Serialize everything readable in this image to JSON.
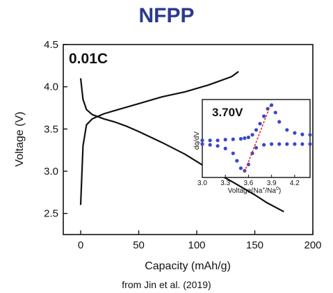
{
  "title": "NFPP",
  "caption": "from Jin et al. (2019)",
  "rate_label": "0.01C",
  "colors": {
    "title": "#2b3990",
    "curve": "#111111",
    "inset_points": "#3a47c8",
    "fit_line": "#e0302a"
  },
  "chart_data": {
    "type": "line",
    "xlabel": "Capacity (mAh/g)",
    "ylabel": "Voltage (V)",
    "xlim": [
      -15,
      200
    ],
    "ylim": [
      2.25,
      4.5
    ],
    "xticks": [
      0,
      50,
      100,
      150,
      200
    ],
    "yticks": [
      2.5,
      3.0,
      3.5,
      4.0,
      4.5
    ],
    "ytick_labels": [
      "2.5",
      "3.0",
      "3.5",
      "4.0",
      "4.5"
    ],
    "grid": false,
    "series": [
      {
        "x": [
          0,
          2,
          5,
          10,
          20,
          30,
          50,
          70,
          90,
          110,
          120,
          130,
          136
        ],
        "y": [
          2.6,
          3.3,
          3.55,
          3.62,
          3.68,
          3.72,
          3.8,
          3.88,
          3.94,
          4.02,
          4.07,
          4.12,
          4.18
        ]
      },
      {
        "x": [
          0,
          2,
          5,
          10,
          20,
          30,
          40,
          50,
          70,
          90,
          110,
          130,
          150,
          160,
          175
        ],
        "y": [
          4.1,
          3.85,
          3.73,
          3.67,
          3.62,
          3.58,
          3.53,
          3.47,
          3.34,
          3.2,
          3.03,
          2.88,
          2.72,
          2.63,
          2.52
        ]
      }
    ],
    "inset": {
      "peak_label": "3.70V",
      "xlabel": "Voltage(Na+/Na0)",
      "ylabel": "dq/dV",
      "xlim": [
        3.0,
        4.4
      ],
      "xticks": [
        3.0,
        3.3,
        3.6,
        3.9,
        4.2
      ],
      "xtick_labels": [
        "3.0",
        "3.3",
        "3.6",
        "3.9",
        "4.2"
      ],
      "charge_points": {
        "x": [
          3.0,
          3.1,
          3.2,
          3.3,
          3.4,
          3.5,
          3.55,
          3.6,
          3.65,
          3.7,
          3.75,
          3.8,
          3.85,
          3.9,
          3.95,
          4.0,
          4.1,
          4.2,
          4.3,
          4.4
        ],
        "y": [
          0.3,
          0.3,
          0.3,
          0.32,
          0.33,
          0.34,
          0.36,
          0.38,
          0.45,
          0.58,
          0.75,
          0.95,
          1.15,
          1.25,
          1.05,
          0.8,
          0.58,
          0.5,
          0.46,
          0.45
        ]
      },
      "discharge_points": {
        "x": [
          3.0,
          3.1,
          3.2,
          3.3,
          3.4,
          3.45,
          3.5,
          3.55,
          3.6,
          3.65,
          3.7,
          3.8,
          3.9,
          4.0,
          4.1,
          4.2,
          4.3,
          4.4
        ],
        "y": [
          0.2,
          0.18,
          0.15,
          0.08,
          -0.05,
          -0.25,
          -0.45,
          -0.52,
          -0.35,
          -0.05,
          0.1,
          0.18,
          0.2,
          0.2,
          0.2,
          0.2,
          0.2,
          0.2
        ]
      },
      "fit_line": {
        "x": [
          3.55,
          3.88
        ],
        "y": [
          -0.55,
          1.22
        ]
      }
    }
  }
}
